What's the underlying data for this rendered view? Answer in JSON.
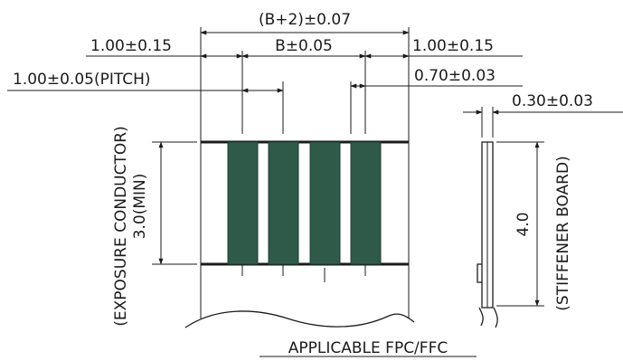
{
  "dimensions": {
    "total_width": "(B+2)±0.07",
    "left_margin": "1.00±0.15",
    "b_width": "B±0.05",
    "right_margin": "1.00±0.15",
    "pitch": "1.00±0.05(PITCH)",
    "conductor_width": "0.70±0.03",
    "stiffener_thickness": "0.30±0.03",
    "exposure_length": "3.0(MIN)",
    "stiffener_length": "4.0"
  },
  "labels": {
    "exposure_conductor": "(EXPOSURE CONDUCTOR)",
    "stiffener_board": "(STIFFENER BOARD)",
    "caption": "APPLICABLE FPC/FFC"
  },
  "colors": {
    "line": "#1b1b1b",
    "conductor": "#2f5a4a"
  }
}
